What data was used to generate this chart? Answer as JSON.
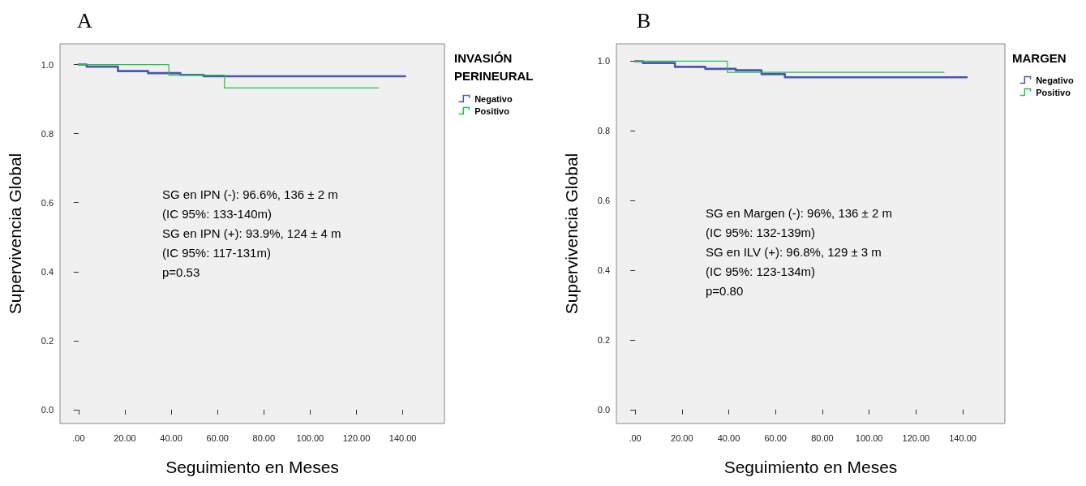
{
  "chart_data": [
    {
      "type": "step",
      "title": "A",
      "xlabel": "Seguimiento en Meses",
      "ylabel": "Supervivencia Global",
      "legend_title": "INVASIÓN PERINEURAL",
      "legend": "right",
      "grid": false,
      "marker": "none",
      "line_style": "solid",
      "annotations": [
        "SG en IPN (-): 96.6%, 136 ± 2 m",
        "(IC 95%: 133-140m)",
        "SG en IPN (+): 93.9%, 124 ± 4 m",
        "(IC 95%: 117-131m)",
        "p=0.53"
      ],
      "xlim": [
        -8,
        158
      ],
      "ylim": [
        -0.04,
        1.06
      ],
      "xticks": [
        {
          "value": 0,
          "label": ".00"
        },
        {
          "value": 20,
          "label": "20.00"
        },
        {
          "value": 40,
          "label": "40.00"
        },
        {
          "value": 60,
          "label": "60.00"
        },
        {
          "value": 80,
          "label": "80.00"
        },
        {
          "value": 100,
          "label": "100.00"
        },
        {
          "value": 120,
          "label": "120.00"
        },
        {
          "value": 140,
          "label": "140.00"
        }
      ],
      "yticks": [
        {
          "value": 0,
          "label": "0.0"
        },
        {
          "value": 0.2,
          "label": "0.2"
        },
        {
          "value": 0.4,
          "label": "0.4"
        },
        {
          "value": 0.6,
          "label": "0.6"
        },
        {
          "value": 0.8,
          "label": "0.8"
        },
        {
          "value": 1,
          "label": "1.0"
        }
      ],
      "series": [
        {
          "name": "Negativo",
          "color": "#4a55b5",
          "x": [
            0,
            3.5,
            17,
            30,
            44,
            54,
            141
          ],
          "values": [
            1,
            0.994,
            0.981,
            0.975,
            0.97,
            0.966,
            0.966
          ]
        },
        {
          "name": "Positivo",
          "color": "#22c24a",
          "x": [
            0,
            39,
            63,
            129.5
          ],
          "values": [
            1,
            0.969,
            0.932,
            0.932
          ]
        }
      ]
    },
    {
      "type": "step",
      "title": "B",
      "xlabel": "Seguimiento en Meses",
      "ylabel": "Supervivencia Global",
      "legend_title": "MARGEN",
      "legend": "right",
      "grid": false,
      "marker": "none",
      "line_style": "solid",
      "annotations": [
        "SG en Margen (-): 96%, 136 ± 2 m",
        "(IC 95%: 132-139m)",
        "SG en ILV (+): 96.8%, 129 ± 3 m",
        "(IC 95%: 123-134m)",
        "p=0.80"
      ],
      "xlim": [
        -8,
        158
      ],
      "ylim": [
        -0.04,
        1.05
      ],
      "xticks": [
        {
          "value": 0,
          "label": ".00"
        },
        {
          "value": 20,
          "label": "20.00"
        },
        {
          "value": 40,
          "label": "40.00"
        },
        {
          "value": 60,
          "label": "60.00"
        },
        {
          "value": 80,
          "label": "80.00"
        },
        {
          "value": 100,
          "label": "100.00"
        },
        {
          "value": 120,
          "label": "120.00"
        },
        {
          "value": 140,
          "label": "140.00"
        }
      ],
      "yticks": [
        {
          "value": 0,
          "label": "0.0"
        },
        {
          "value": 0.2,
          "label": "0.2"
        },
        {
          "value": 0.4,
          "label": "0.4"
        },
        {
          "value": 0.6,
          "label": "0.6"
        },
        {
          "value": 0.8,
          "label": "0.8"
        },
        {
          "value": 1,
          "label": "1.0"
        }
      ],
      "series": [
        {
          "name": "Negativo",
          "color": "#4a55b5",
          "x": [
            0,
            3.3,
            17,
            30,
            43,
            54,
            64,
            141.7
          ],
          "values": [
            1,
            0.995,
            0.984,
            0.978,
            0.974,
            0.963,
            0.954,
            0.954
          ]
        },
        {
          "name": "Positivo",
          "color": "#22c24a",
          "x": [
            0,
            39.4,
            132
          ],
          "values": [
            1,
            0.968,
            0.968
          ]
        }
      ]
    }
  ]
}
